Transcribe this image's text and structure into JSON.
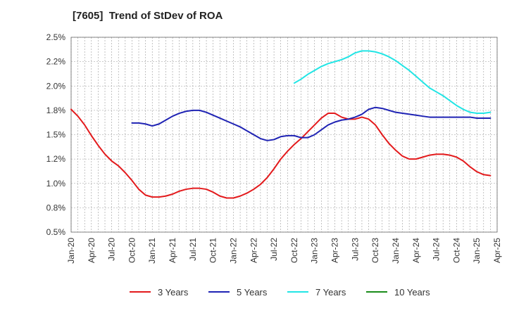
{
  "chart_data": {
    "type": "line",
    "title": "[7605]  Trend of StDev of ROA",
    "xlabel": "",
    "ylabel": "",
    "ylim": [
      0.5,
      2.5
    ],
    "y_ticks": [
      0.5,
      0.75,
      1.0,
      1.25,
      1.5,
      1.75,
      2.0,
      2.25,
      2.5
    ],
    "y_tick_labels": [
      "0.5%",
      "0.8%",
      "1.0%",
      "1.2%",
      "1.5%",
      "1.8%",
      "2.0%",
      "2.2%",
      "2.5%"
    ],
    "x_tick_labels": [
      "Jan-20",
      "Apr-20",
      "Jul-20",
      "Oct-20",
      "Jan-21",
      "Apr-21",
      "Jul-21",
      "Oct-21",
      "Jan-22",
      "Apr-22",
      "Jul-22",
      "Oct-22",
      "Jan-23",
      "Apr-23",
      "Jul-23",
      "Oct-23",
      "Jan-24",
      "Apr-24",
      "Jul-24",
      "Oct-24",
      "Jan-25",
      "Apr-25"
    ],
    "grid": true,
    "legend_position": "bottom",
    "series": [
      {
        "name": "3 Years",
        "color": "#e31a1c",
        "points": [
          [
            "2020-01",
            1.76
          ],
          [
            "2020-02",
            1.69
          ],
          [
            "2020-03",
            1.6
          ],
          [
            "2020-04",
            1.49
          ],
          [
            "2020-05",
            1.39
          ],
          [
            "2020-06",
            1.3
          ],
          [
            "2020-07",
            1.23
          ],
          [
            "2020-08",
            1.18
          ],
          [
            "2020-09",
            1.11
          ],
          [
            "2020-10",
            1.03
          ],
          [
            "2020-11",
            0.94
          ],
          [
            "2020-12",
            0.88
          ],
          [
            "2021-01",
            0.86
          ],
          [
            "2021-02",
            0.86
          ],
          [
            "2021-03",
            0.87
          ],
          [
            "2021-04",
            0.89
          ],
          [
            "2021-05",
            0.92
          ],
          [
            "2021-06",
            0.94
          ],
          [
            "2021-07",
            0.95
          ],
          [
            "2021-08",
            0.95
          ],
          [
            "2021-09",
            0.94
          ],
          [
            "2021-10",
            0.91
          ],
          [
            "2021-11",
            0.87
          ],
          [
            "2021-12",
            0.85
          ],
          [
            "2022-01",
            0.85
          ],
          [
            "2022-02",
            0.87
          ],
          [
            "2022-03",
            0.9
          ],
          [
            "2022-04",
            0.94
          ],
          [
            "2022-05",
            0.99
          ],
          [
            "2022-06",
            1.06
          ],
          [
            "2022-07",
            1.15
          ],
          [
            "2022-08",
            1.25
          ],
          [
            "2022-09",
            1.33
          ],
          [
            "2022-10",
            1.4
          ],
          [
            "2022-11",
            1.46
          ],
          [
            "2022-12",
            1.53
          ],
          [
            "2023-01",
            1.6
          ],
          [
            "2023-02",
            1.67
          ],
          [
            "2023-03",
            1.72
          ],
          [
            "2023-04",
            1.72
          ],
          [
            "2023-05",
            1.68
          ],
          [
            "2023-06",
            1.66
          ],
          [
            "2023-07",
            1.66
          ],
          [
            "2023-08",
            1.68
          ],
          [
            "2023-09",
            1.66
          ],
          [
            "2023-10",
            1.6
          ],
          [
            "2023-11",
            1.5
          ],
          [
            "2023-12",
            1.41
          ],
          [
            "2024-01",
            1.34
          ],
          [
            "2024-02",
            1.28
          ],
          [
            "2024-03",
            1.25
          ],
          [
            "2024-04",
            1.25
          ],
          [
            "2024-05",
            1.27
          ],
          [
            "2024-06",
            1.29
          ],
          [
            "2024-07",
            1.3
          ],
          [
            "2024-08",
            1.3
          ],
          [
            "2024-09",
            1.29
          ],
          [
            "2024-10",
            1.27
          ],
          [
            "2024-11",
            1.23
          ],
          [
            "2024-12",
            1.17
          ],
          [
            "2025-01",
            1.12
          ],
          [
            "2025-02",
            1.09
          ],
          [
            "2025-03",
            1.08
          ]
        ]
      },
      {
        "name": "5 Years",
        "color": "#1f23b4",
        "points": [
          [
            "2020-10",
            1.62
          ],
          [
            "2020-11",
            1.62
          ],
          [
            "2020-12",
            1.61
          ],
          [
            "2021-01",
            1.59
          ],
          [
            "2021-02",
            1.61
          ],
          [
            "2021-03",
            1.65
          ],
          [
            "2021-04",
            1.69
          ],
          [
            "2021-05",
            1.72
          ],
          [
            "2021-06",
            1.74
          ],
          [
            "2021-07",
            1.75
          ],
          [
            "2021-08",
            1.75
          ],
          [
            "2021-09",
            1.73
          ],
          [
            "2021-10",
            1.7
          ],
          [
            "2021-11",
            1.67
          ],
          [
            "2021-12",
            1.64
          ],
          [
            "2022-01",
            1.61
          ],
          [
            "2022-02",
            1.58
          ],
          [
            "2022-03",
            1.54
          ],
          [
            "2022-04",
            1.5
          ],
          [
            "2022-05",
            1.46
          ],
          [
            "2022-06",
            1.44
          ],
          [
            "2022-07",
            1.45
          ],
          [
            "2022-08",
            1.48
          ],
          [
            "2022-09",
            1.49
          ],
          [
            "2022-10",
            1.49
          ],
          [
            "2022-11",
            1.47
          ],
          [
            "2022-12",
            1.47
          ],
          [
            "2023-01",
            1.5
          ],
          [
            "2023-02",
            1.55
          ],
          [
            "2023-03",
            1.6
          ],
          [
            "2023-04",
            1.63
          ],
          [
            "2023-05",
            1.65
          ],
          [
            "2023-06",
            1.66
          ],
          [
            "2023-07",
            1.68
          ],
          [
            "2023-08",
            1.71
          ],
          [
            "2023-09",
            1.76
          ],
          [
            "2023-10",
            1.78
          ],
          [
            "2023-11",
            1.77
          ],
          [
            "2023-12",
            1.75
          ],
          [
            "2024-01",
            1.73
          ],
          [
            "2024-02",
            1.72
          ],
          [
            "2024-03",
            1.71
          ],
          [
            "2024-04",
            1.7
          ],
          [
            "2024-05",
            1.69
          ],
          [
            "2024-06",
            1.68
          ],
          [
            "2024-07",
            1.68
          ],
          [
            "2024-08",
            1.68
          ],
          [
            "2024-09",
            1.68
          ],
          [
            "2024-10",
            1.68
          ],
          [
            "2024-11",
            1.68
          ],
          [
            "2024-12",
            1.68
          ],
          [
            "2025-01",
            1.67
          ],
          [
            "2025-02",
            1.67
          ],
          [
            "2025-03",
            1.67
          ]
        ]
      },
      {
        "name": "7 Years",
        "color": "#22e5e5",
        "points": [
          [
            "2022-10",
            2.03
          ],
          [
            "2022-11",
            2.07
          ],
          [
            "2022-12",
            2.12
          ],
          [
            "2023-01",
            2.16
          ],
          [
            "2023-02",
            2.2
          ],
          [
            "2023-03",
            2.23
          ],
          [
            "2023-04",
            2.25
          ],
          [
            "2023-05",
            2.27
          ],
          [
            "2023-06",
            2.3
          ],
          [
            "2023-07",
            2.34
          ],
          [
            "2023-08",
            2.36
          ],
          [
            "2023-09",
            2.36
          ],
          [
            "2023-10",
            2.35
          ],
          [
            "2023-11",
            2.33
          ],
          [
            "2023-12",
            2.3
          ],
          [
            "2024-01",
            2.26
          ],
          [
            "2024-02",
            2.21
          ],
          [
            "2024-03",
            2.16
          ],
          [
            "2024-04",
            2.1
          ],
          [
            "2024-05",
            2.04
          ],
          [
            "2024-06",
            1.98
          ],
          [
            "2024-07",
            1.94
          ],
          [
            "2024-08",
            1.9
          ],
          [
            "2024-09",
            1.85
          ],
          [
            "2024-10",
            1.8
          ],
          [
            "2024-11",
            1.76
          ],
          [
            "2024-12",
            1.73
          ],
          [
            "2025-01",
            1.72
          ],
          [
            "2025-02",
            1.72
          ],
          [
            "2025-03",
            1.73
          ]
        ]
      },
      {
        "name": "10 Years",
        "color": "#1a8c1a",
        "points": []
      }
    ]
  }
}
